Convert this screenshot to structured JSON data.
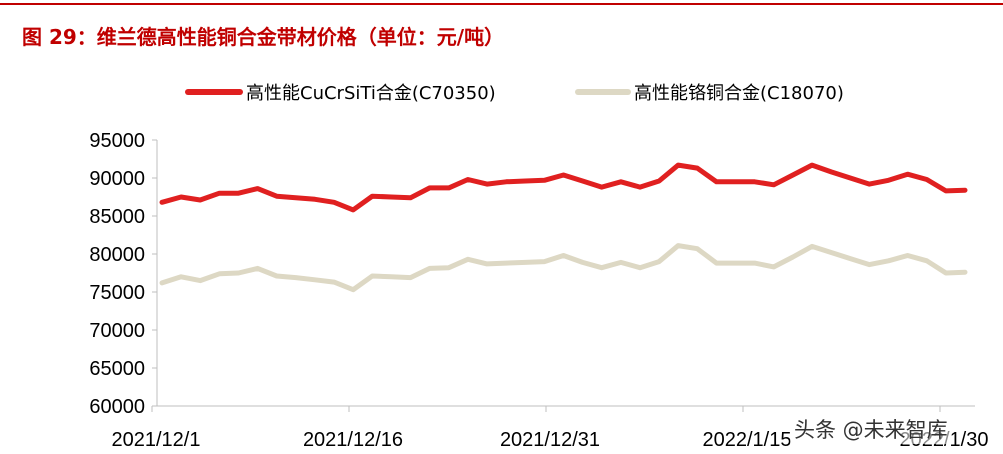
{
  "figure_title": "图 29：维兰德高性能铜合金带材价格（单位：元/吨）",
  "watermark": "头条 @未来智库",
  "colors": {
    "series1": "#e02020",
    "series2": "#ddd8c4",
    "title": "#c00000"
  },
  "chart_data": {
    "type": "line",
    "title": "",
    "xlabel": "",
    "ylabel": "",
    "ylim": [
      60000,
      95000
    ],
    "yticks": [
      60000,
      65000,
      70000,
      75000,
      80000,
      85000,
      90000,
      95000
    ],
    "xticks": [
      "2021/12/1",
      "2021/12/16",
      "2021/12/31",
      "2022/1/15",
      "2022/1/30"
    ],
    "x": [
      "2021/12/1",
      "2021/12/2",
      "2021/12/3",
      "2021/12/6",
      "2021/12/7",
      "2021/12/8",
      "2021/12/9",
      "2021/12/10",
      "2021/12/13",
      "2021/12/14",
      "2021/12/15",
      "2021/12/16",
      "2021/12/17",
      "2021/12/20",
      "2021/12/21",
      "2021/12/22",
      "2021/12/23",
      "2021/12/24",
      "2021/12/27",
      "2021/12/28",
      "2021/12/29",
      "2021/12/30",
      "2021/12/31",
      "2022/1/4",
      "2022/1/5",
      "2022/1/6",
      "2022/1/7",
      "2022/1/10",
      "2022/1/11",
      "2022/1/12",
      "2022/1/13",
      "2022/1/14",
      "2022/1/17",
      "2022/1/18",
      "2022/1/19",
      "2022/1/20",
      "2022/1/21",
      "2022/1/24",
      "2022/1/25",
      "2022/1/26",
      "2022/1/27",
      "2022/1/28",
      "2022/1/31"
    ],
    "series": [
      {
        "name": "高性能CuCrSiTi合金(C70350)",
        "values": [
          86800,
          87500,
          87100,
          88000,
          88000,
          88600,
          87600,
          87400,
          87200,
          86800,
          85800,
          87600,
          87500,
          87400,
          88700,
          88700,
          89800,
          89200,
          89500,
          89600,
          89700,
          90400,
          89600,
          88800,
          89500,
          88800,
          89600,
          91700,
          91300,
          89500,
          89500,
          89500,
          89100,
          90400,
          91700,
          90800,
          90000,
          89200,
          89700,
          90500,
          89800,
          88300,
          88400
        ]
      },
      {
        "name": "高性能铬铜合金(C18070)",
        "values": [
          76200,
          77000,
          76500,
          77400,
          77500,
          78100,
          77100,
          76900,
          76600,
          76300,
          75300,
          77100,
          77000,
          76900,
          78100,
          78200,
          79300,
          78700,
          78800,
          78900,
          79000,
          79800,
          78900,
          78200,
          78900,
          78200,
          79000,
          81100,
          80700,
          78800,
          78800,
          78800,
          78300,
          79600,
          81000,
          80200,
          79400,
          78600,
          79100,
          79800,
          79100,
          77500,
          77600
        ]
      }
    ],
    "legend": "top",
    "grid": false
  }
}
